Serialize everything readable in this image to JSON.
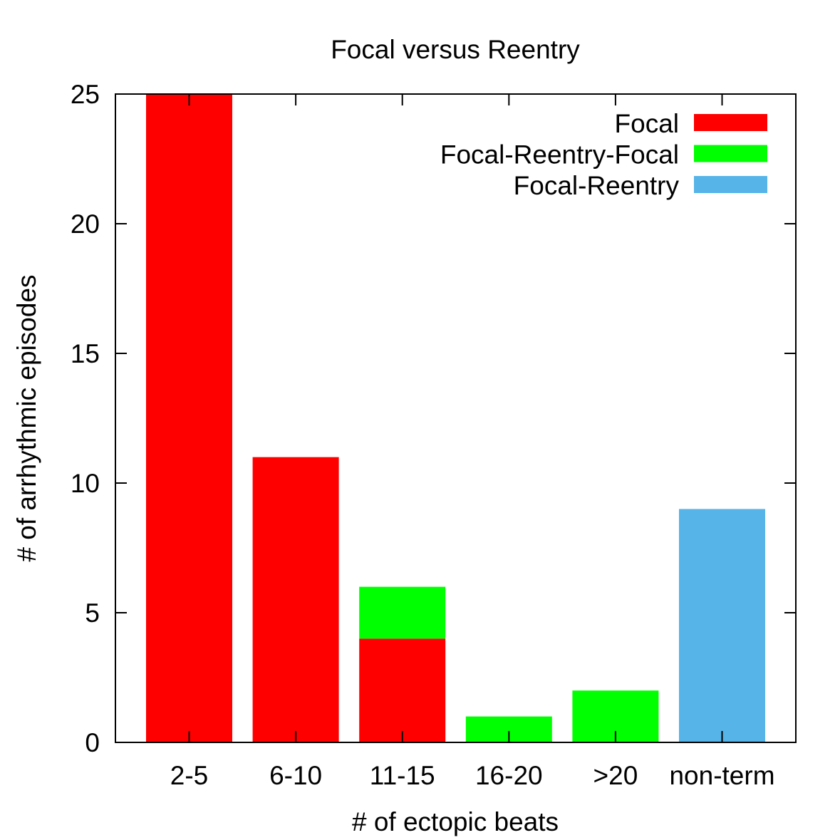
{
  "chart_data": {
    "type": "bar",
    "stacked": true,
    "title": "Focal versus Reentry",
    "xlabel": "# of ectopic beats",
    "ylabel": "# of arrhythmic episodes",
    "ylim": [
      0,
      25
    ],
    "yticks": [
      0,
      5,
      10,
      15,
      20,
      25
    ],
    "categories": [
      "2-5",
      "6-10",
      "11-15",
      "16-20",
      ">20",
      "non-term"
    ],
    "series": [
      {
        "name": "Focal",
        "color": "#ff0000",
        "values": [
          25,
          11,
          4,
          0,
          0,
          0
        ]
      },
      {
        "name": "Focal-Reentry-Focal",
        "color": "#00ff00",
        "values": [
          0,
          0,
          2,
          1,
          2,
          0
        ]
      },
      {
        "name": "Focal-Reentry",
        "color": "#56b4e9",
        "values": [
          0,
          0,
          0,
          0,
          0,
          9
        ]
      }
    ],
    "legend_position": "top-right",
    "grid": false
  }
}
